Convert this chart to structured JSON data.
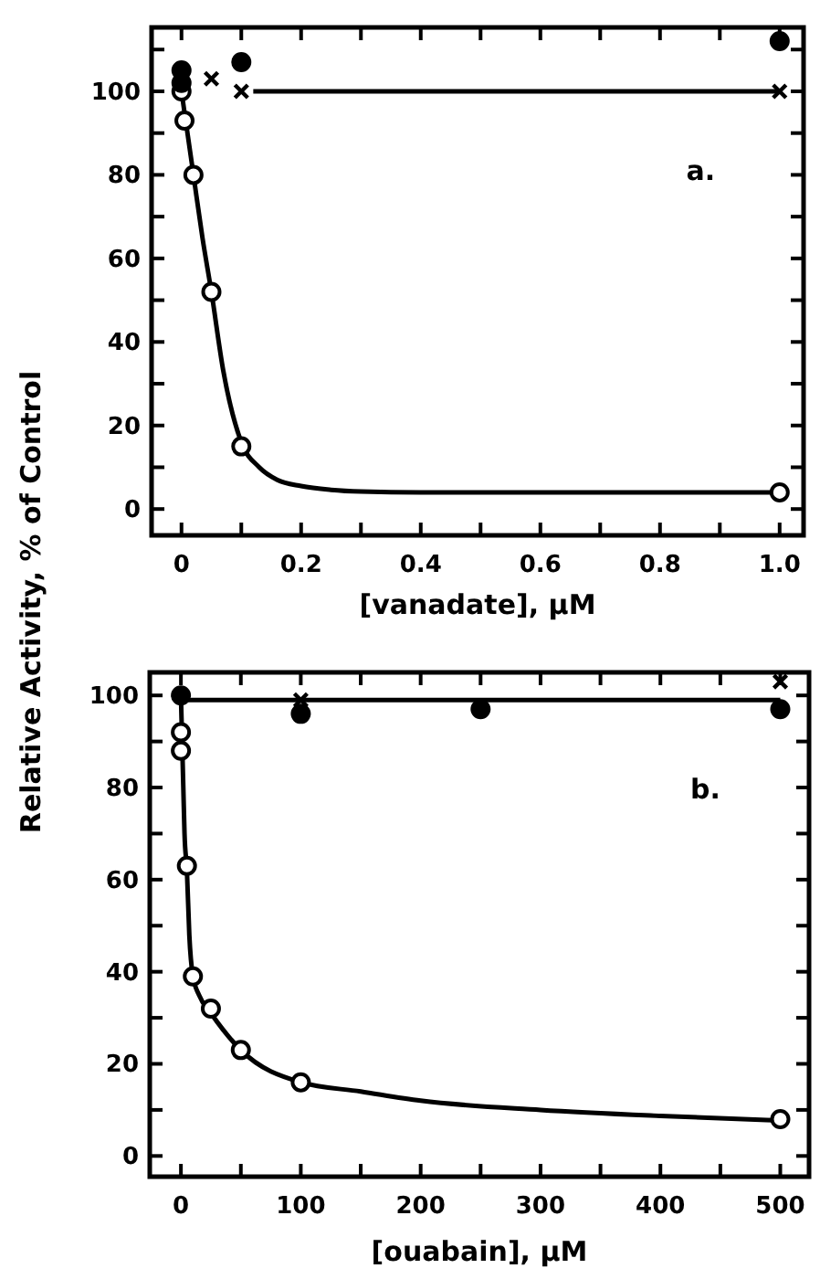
{
  "chart_data": [
    {
      "type": "scatter",
      "xlabel": "[vanadate], μM",
      "ylabel": "Relative Activity, % of Control",
      "annotations": [
        "a."
      ],
      "xlim": [
        -0.05,
        1.04
      ],
      "ylim": [
        -6.3,
        115.3
      ],
      "xticks": [
        0,
        {
          "value": 0.1,
          "label": null
        },
        0.2,
        {
          "value": 0.3,
          "label": null
        },
        0.4,
        {
          "value": 0.5,
          "label": null
        },
        0.6,
        {
          "value": 0.7,
          "label": null
        },
        0.8,
        {
          "value": 0.9,
          "label": null
        },
        {
          "value": 1.0,
          "label": "1.0"
        }
      ],
      "yticks": [
        0,
        {
          "value": 10,
          "label": null
        },
        20,
        {
          "value": 30,
          "label": null
        },
        40,
        {
          "value": 50,
          "label": null
        },
        60,
        {
          "value": 70,
          "label": null
        },
        80,
        {
          "value": 90,
          "label": null
        },
        100,
        {
          "value": 110,
          "label": null
        }
      ],
      "grid": false,
      "series": [
        {
          "type": "line",
          "color": "#000000",
          "marker": "none",
          "line_style": "solid",
          "x": [
            0,
            0.01,
            0.02,
            0.035,
            0.05,
            0.07,
            0.1,
            0.13,
            0.16,
            0.2,
            0.25,
            0.3,
            0.4,
            0.6,
            1.0
          ],
          "values": [
            100,
            90,
            80,
            65,
            52,
            33,
            16,
            10,
            7,
            5.5,
            4.6,
            4.2,
            4,
            4,
            4
          ]
        },
        {
          "type": "line",
          "color": "#000000",
          "marker": "none",
          "line_style": "solid",
          "x": [
            0.12,
            1.0
          ],
          "values": [
            100,
            100
          ]
        },
        {
          "color": "#ffffff",
          "marker": "circle",
          "x": [
            0,
            0.005,
            0.02,
            0.05,
            0.1,
            1.0
          ],
          "values": [
            100,
            93,
            80,
            52,
            15,
            4
          ]
        },
        {
          "color": "#000000",
          "marker": "circle",
          "x": [
            0,
            0,
            0.1,
            1.0
          ],
          "values": [
            105,
            102,
            107,
            112
          ]
        },
        {
          "color": "#000000",
          "marker": "cross",
          "x": [
            0.05,
            0.1,
            1.0
          ],
          "values": [
            103,
            100,
            100
          ]
        }
      ]
    },
    {
      "type": "scatter",
      "xlabel": "[ouabain], μM",
      "annotations": [
        "b."
      ],
      "xlim": [
        -26,
        524
      ],
      "ylim": [
        -4.5,
        105
      ],
      "xticks": [
        0,
        {
          "value": 50,
          "label": null
        },
        100,
        {
          "value": 150,
          "label": null
        },
        200,
        {
          "value": 250,
          "label": null
        },
        300,
        {
          "value": 350,
          "label": null
        },
        400,
        {
          "value": 450,
          "label": null
        },
        500
      ],
      "yticks": [
        0,
        {
          "value": 10,
          "label": null
        },
        20,
        {
          "value": 30,
          "label": null
        },
        40,
        {
          "value": 50,
          "label": null
        },
        60,
        {
          "value": 70,
          "label": null
        },
        80,
        {
          "value": 90,
          "label": null
        },
        100
      ],
      "grid": false,
      "series": [
        {
          "type": "line",
          "color": "#000000",
          "marker": "none",
          "line_style": "solid",
          "x": [
            0,
            1,
            2,
            3,
            5,
            7,
            10,
            15,
            25,
            50,
            100,
            150,
            200,
            300,
            400,
            500
          ],
          "values": [
            100,
            90,
            80,
            70,
            62,
            48,
            39,
            35,
            31,
            23,
            16,
            14,
            12,
            10,
            8.7,
            7.7
          ]
        },
        {
          "type": "line",
          "color": "#000000",
          "marker": "none",
          "line_style": "solid",
          "x": [
            0,
            500
          ],
          "values": [
            99,
            99
          ]
        },
        {
          "color": "#ffffff",
          "marker": "circle",
          "x": [
            0,
            0,
            5,
            10,
            25,
            50,
            100,
            500
          ],
          "values": [
            92,
            88,
            63,
            39,
            32,
            23,
            16,
            8
          ]
        },
        {
          "color": "#000000",
          "marker": "circle",
          "x": [
            0,
            100,
            250,
            500
          ],
          "values": [
            100,
            96,
            97,
            97
          ]
        },
        {
          "color": "#000000",
          "marker": "cross",
          "x": [
            100,
            500
          ],
          "values": [
            99,
            103
          ]
        }
      ]
    }
  ]
}
